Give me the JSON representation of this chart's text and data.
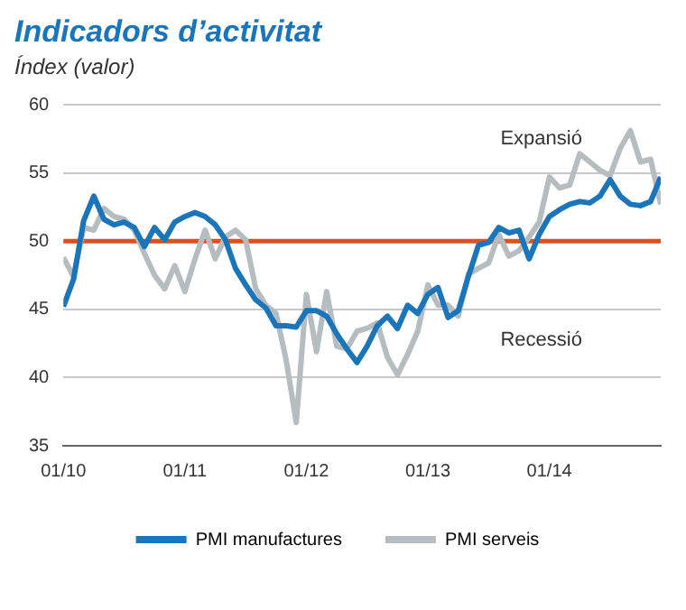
{
  "chart_data": {
    "type": "line",
    "title": "Indicadors d’activitat",
    "ylabel": "Índex (valor)",
    "x": [
      "2010-01",
      "2010-02",
      "2010-03",
      "2010-04",
      "2010-05",
      "2010-06",
      "2010-07",
      "2010-08",
      "2010-09",
      "2010-10",
      "2010-11",
      "2010-12",
      "2011-01",
      "2011-02",
      "2011-03",
      "2011-04",
      "2011-05",
      "2011-06",
      "2011-07",
      "2011-08",
      "2011-09",
      "2011-10",
      "2011-11",
      "2011-12",
      "2012-01",
      "2012-02",
      "2012-03",
      "2012-04",
      "2012-05",
      "2012-06",
      "2012-07",
      "2012-08",
      "2012-09",
      "2012-10",
      "2012-11",
      "2012-12",
      "2013-01",
      "2013-02",
      "2013-03",
      "2013-04",
      "2013-05",
      "2013-06",
      "2013-07",
      "2013-08",
      "2013-09",
      "2013-10",
      "2013-11",
      "2013-12",
      "2014-01",
      "2014-02",
      "2014-03",
      "2014-04",
      "2014-05",
      "2014-06",
      "2014-07",
      "2014-08",
      "2014-09",
      "2014-10",
      "2014-11",
      "2014-12"
    ],
    "series": [
      {
        "name": "PMI manufactures",
        "color": "#1a75bb",
        "values": [
          45.2,
          47.2,
          51.5,
          53.3,
          51.6,
          51.2,
          51.4,
          51.0,
          49.6,
          51.0,
          50.1,
          51.4,
          51.8,
          52.1,
          51.8,
          51.2,
          50.1,
          48.0,
          46.8,
          45.7,
          45.1,
          43.8,
          43.8,
          43.7,
          44.9,
          44.9,
          44.5,
          43.2,
          42.1,
          41.1,
          42.3,
          43.8,
          44.5,
          43.6,
          45.3,
          44.7,
          46.1,
          46.6,
          44.4,
          44.9,
          47.4,
          49.7,
          49.9,
          51.0,
          50.6,
          50.8,
          48.7,
          50.5,
          51.8,
          52.3,
          52.7,
          52.9,
          52.8,
          53.3,
          54.5,
          53.3,
          52.7,
          52.6,
          52.9,
          54.7
        ]
      },
      {
        "name": "PMI serveis",
        "color": "#b5bdc0",
        "values": [
          48.8,
          47.4,
          51.0,
          50.8,
          52.4,
          51.8,
          51.6,
          50.8,
          49.1,
          47.5,
          46.5,
          48.2,
          46.3,
          48.7,
          50.8,
          48.7,
          50.3,
          50.8,
          50.1,
          46.5,
          45.3,
          44.7,
          41.3,
          36.7,
          46.1,
          41.9,
          46.3,
          42.3,
          42.1,
          43.4,
          43.6,
          44.0,
          41.5,
          40.2,
          41.7,
          43.4,
          46.8,
          45.3,
          45.3,
          44.5,
          47.6,
          48.0,
          48.4,
          50.5,
          48.9,
          49.3,
          50.3,
          51.4,
          54.7,
          53.9,
          54.1,
          56.4,
          55.8,
          55.2,
          54.8,
          56.8,
          58.1,
          55.8,
          56.0,
          52.7
        ]
      }
    ],
    "xlim": [
      "2010-01",
      "2014-12"
    ],
    "xticks": [
      {
        "value": "2010-01",
        "label": "01/10"
      },
      {
        "value": "2011-01",
        "label": "01/11"
      },
      {
        "value": "2012-01",
        "label": "01/12"
      },
      {
        "value": "2013-01",
        "label": "01/13"
      },
      {
        "value": "2014-01",
        "label": "01/14"
      }
    ],
    "ylim": [
      35,
      60
    ],
    "yticks": [
      35,
      40,
      45,
      50,
      55,
      60
    ],
    "ref_lines": [
      {
        "axis": "y",
        "value": 50,
        "color": "#e0501e"
      }
    ],
    "annotations": [
      "Expansió",
      "Recessió"
    ],
    "grid": "y",
    "legend": "bottom",
    "marker": "none",
    "line_style": "solid"
  }
}
